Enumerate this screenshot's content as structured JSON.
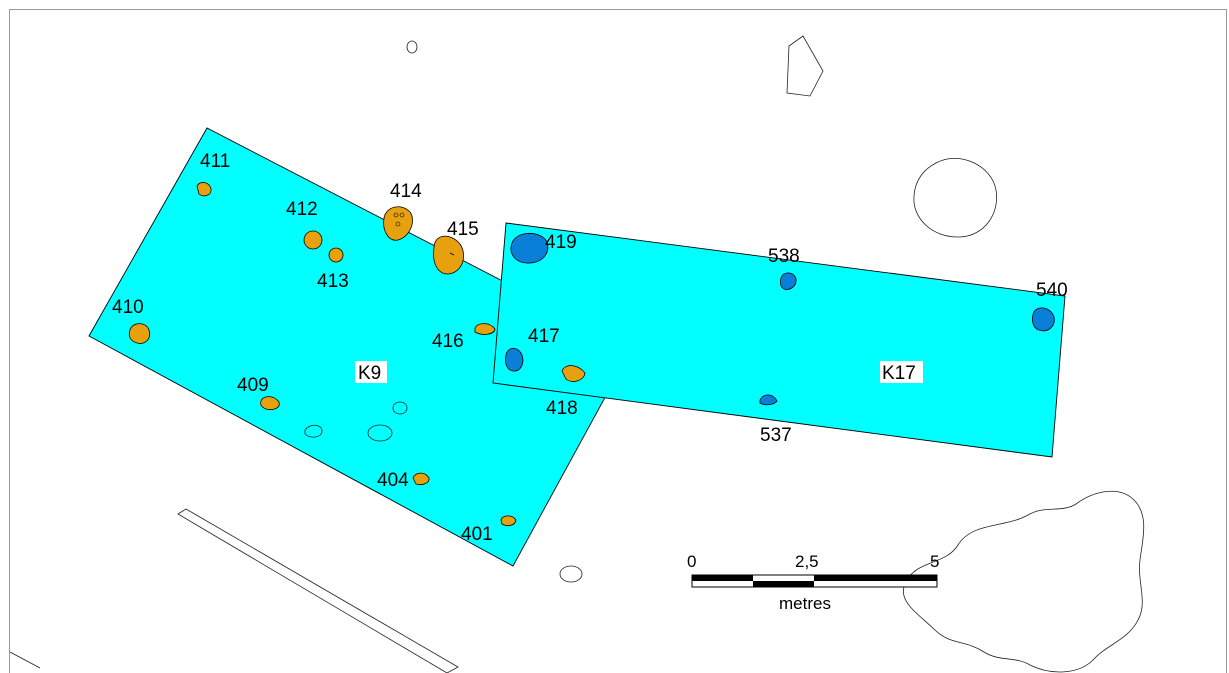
{
  "map": {
    "trenches": [
      {
        "id": "k9",
        "label": "K9"
      },
      {
        "id": "k17",
        "label": "K17"
      }
    ],
    "features": [
      {
        "id": "411",
        "label": "411",
        "color": "#e8a10e",
        "group": "orange"
      },
      {
        "id": "412",
        "label": "412",
        "color": "#e8a10e",
        "group": "orange"
      },
      {
        "id": "413",
        "label": "413",
        "color": "#e8a10e",
        "group": "orange"
      },
      {
        "id": "414",
        "label": "414",
        "color": "#e8a10e",
        "group": "orange"
      },
      {
        "id": "415",
        "label": "415",
        "color": "#e8a10e",
        "group": "orange"
      },
      {
        "id": "410",
        "label": "410",
        "color": "#e8a10e",
        "group": "orange"
      },
      {
        "id": "416",
        "label": "416",
        "color": "#e8a10e",
        "group": "orange"
      },
      {
        "id": "409",
        "label": "409",
        "color": "#e8a10e",
        "group": "orange"
      },
      {
        "id": "404",
        "label": "404",
        "color": "#e8a10e",
        "group": "orange"
      },
      {
        "id": "401",
        "label": "401",
        "color": "#e8a10e",
        "group": "orange"
      },
      {
        "id": "418",
        "label": "418",
        "color": "#e8a10e",
        "group": "orange"
      },
      {
        "id": "419",
        "label": "419",
        "color": "#0a7fd8",
        "group": "blue"
      },
      {
        "id": "417",
        "label": "417",
        "color": "#0a7fd8",
        "group": "blue"
      },
      {
        "id": "538",
        "label": "538",
        "color": "#0a7fd8",
        "group": "blue"
      },
      {
        "id": "537",
        "label": "537",
        "color": "#0a7fd8",
        "group": "blue"
      },
      {
        "id": "540",
        "label": "540",
        "color": "#0a7fd8",
        "group": "blue"
      }
    ],
    "scale_bar": {
      "tick_labels": [
        "0",
        "2,5",
        "5"
      ],
      "unit": "metres"
    },
    "colors": {
      "trench_fill": "#00ffff",
      "orange_feature": "#e8a10e",
      "blue_feature": "#0a7fd8",
      "outline": "#222222"
    }
  }
}
